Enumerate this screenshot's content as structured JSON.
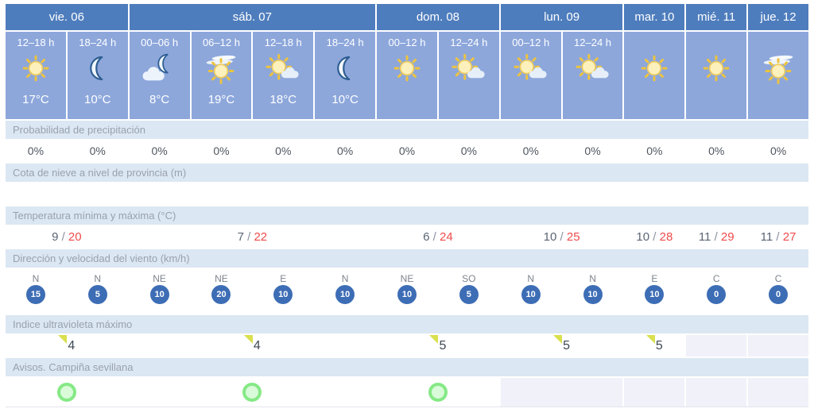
{
  "table": {
    "days": [
      {
        "label": "vie. 06",
        "span": 2
      },
      {
        "label": "sáb. 07",
        "span": 4
      },
      {
        "label": "dom. 08",
        "span": 2
      },
      {
        "label": "lun. 09",
        "span": 2
      },
      {
        "label": "mar. 10",
        "span": 1
      },
      {
        "label": "mié. 11",
        "span": 1
      },
      {
        "label": "jue. 12",
        "span": 1
      }
    ],
    "slots": [
      {
        "time": "12–18 h",
        "icon": "sun",
        "temp": "17°C"
      },
      {
        "time": "18–24 h",
        "icon": "moon",
        "temp": "10°C"
      },
      {
        "time": "00–06 h",
        "icon": "cloud-moon",
        "temp": "8°C"
      },
      {
        "time": "06–12 h",
        "icon": "sun-haze",
        "temp": "19°C"
      },
      {
        "time": "12–18 h",
        "icon": "sun-cloud",
        "temp": "18°C"
      },
      {
        "time": "18–24 h",
        "icon": "moon",
        "temp": "10°C"
      },
      {
        "time": "00–12 h",
        "icon": "sun",
        "temp": ""
      },
      {
        "time": "12–24 h",
        "icon": "sun-cloud",
        "temp": ""
      },
      {
        "time": "00–12 h",
        "icon": "sun-cloud",
        "temp": ""
      },
      {
        "time": "12–24 h",
        "icon": "sun-cloud",
        "temp": ""
      },
      {
        "time": "",
        "icon": "sun",
        "temp": ""
      },
      {
        "time": "",
        "icon": "sun",
        "temp": ""
      },
      {
        "time": "",
        "icon": "sun-haze",
        "temp": ""
      }
    ],
    "rows": {
      "precipitation": {
        "label": "Probabilidad de precipitación",
        "values": [
          "0%",
          "0%",
          "0%",
          "0%",
          "0%",
          "0%",
          "0%",
          "0%",
          "0%",
          "0%",
          "0%",
          "0%",
          "0%"
        ]
      },
      "snow": {
        "label": "Cota de nieve a nivel de provincia (m)",
        "values": [
          "",
          "",
          "",
          "",
          "",
          "",
          "",
          "",
          "",
          "",
          "",
          "",
          ""
        ]
      },
      "minmax": {
        "label": "Temperatura mínima y máxima (°C)",
        "values": [
          {
            "min": "9",
            "max": "20"
          },
          {
            "min": "7",
            "max": "22"
          },
          {
            "min": "6",
            "max": "24"
          },
          {
            "min": "10",
            "max": "25"
          },
          {
            "min": "10",
            "max": "28"
          },
          {
            "min": "11",
            "max": "29"
          },
          {
            "min": "11",
            "max": "27"
          }
        ]
      },
      "wind": {
        "label": "Dirección y velocidad del viento (km/h)",
        "values": [
          {
            "dir": "N",
            "speed": "15",
            "arrow": "s"
          },
          {
            "dir": "N",
            "speed": "5",
            "arrow": "s"
          },
          {
            "dir": "NE",
            "speed": "10",
            "arrow": "sw"
          },
          {
            "dir": "NE",
            "speed": "20",
            "arrow": "sw"
          },
          {
            "dir": "E",
            "speed": "10",
            "arrow": "w"
          },
          {
            "dir": "N",
            "speed": "10",
            "arrow": "s"
          },
          {
            "dir": "NE",
            "speed": "10",
            "arrow": "sw"
          },
          {
            "dir": "SO",
            "speed": "5",
            "arrow": "ne"
          },
          {
            "dir": "N",
            "speed": "10",
            "arrow": "s"
          },
          {
            "dir": "N",
            "speed": "10",
            "arrow": "s"
          },
          {
            "dir": "E",
            "speed": "10",
            "arrow": "w"
          },
          {
            "dir": "C",
            "speed": "0",
            "arrow": null
          },
          {
            "dir": "C",
            "speed": "0",
            "arrow": null
          }
        ]
      },
      "uv": {
        "label": "Indice ultravioleta máximo",
        "values": [
          {
            "value": "4",
            "disabled": false
          },
          {
            "value": "4",
            "disabled": false
          },
          {
            "value": "5",
            "disabled": false
          },
          {
            "value": "5",
            "disabled": false
          },
          {
            "value": "5",
            "disabled": false
          },
          {
            "value": "",
            "disabled": true
          },
          {
            "value": "",
            "disabled": true
          }
        ]
      },
      "warnings": {
        "label": "Avisos. Campiña sevillana",
        "values": [
          {
            "circle": true,
            "disabled": false
          },
          {
            "circle": true,
            "disabled": false
          },
          {
            "circle": true,
            "disabled": false
          },
          {
            "circle": false,
            "disabled": true
          },
          {
            "circle": false,
            "disabled": true
          },
          {
            "circle": false,
            "disabled": true
          },
          {
            "circle": false,
            "disabled": true
          }
        ]
      }
    },
    "colors": {
      "day_header": "#4e7dbd",
      "slot_background": "#8da7db",
      "label_band": "#dbe7f2",
      "max_temp_red": "#f04b4b",
      "wind_blue": "#3d6db5",
      "uv_marker_yellow": "#d9e04e",
      "warning_green": "#86e986",
      "disabled_cell": "#f0f1f9"
    }
  }
}
